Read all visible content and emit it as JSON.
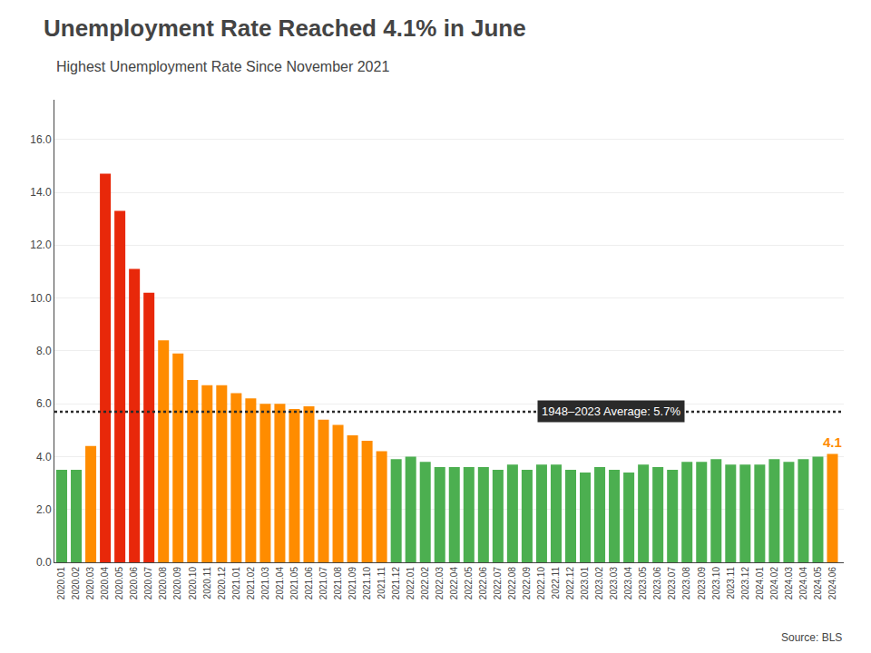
{
  "chart_data": {
    "type": "bar",
    "title": "Unemployment Rate Reached 4.1% in June",
    "subtitle": "Highest Unemployment Rate Since November 2021",
    "source": "Source: BLS",
    "categories": [
      "2020.01",
      "2020.02",
      "2020.03",
      "2020.04",
      "2020.05",
      "2020.06",
      "2020.07",
      "2020.08",
      "2020.09",
      "2020.10",
      "2020.11",
      "2020.12",
      "2021.01",
      "2021.02",
      "2021.03",
      "2021.04",
      "2021.05",
      "2021.06",
      "2021.07",
      "2021.08",
      "2021.09",
      "2021.10",
      "2021.11",
      "2021.12",
      "2022.01",
      "2022.02",
      "2022.03",
      "2022.04",
      "2022.05",
      "2022.06",
      "2022.07",
      "2022.08",
      "2022.09",
      "2022.10",
      "2022.11",
      "2022.12",
      "2023.01",
      "2023.02",
      "2023.03",
      "2023.04",
      "2023.05",
      "2023.06",
      "2023.07",
      "2023.08",
      "2023.09",
      "2023.10",
      "2023.11",
      "2023.12",
      "2024.01",
      "2024.02",
      "2024.03",
      "2024.04",
      "2024.05",
      "2024.06"
    ],
    "values": [
      3.5,
      3.5,
      4.4,
      14.7,
      13.3,
      11.1,
      10.2,
      8.4,
      7.9,
      6.9,
      6.7,
      6.7,
      6.4,
      6.2,
      6.0,
      6.0,
      5.8,
      5.9,
      5.4,
      5.2,
      4.8,
      4.6,
      4.2,
      3.9,
      4.0,
      3.8,
      3.6,
      3.6,
      3.6,
      3.6,
      3.5,
      3.7,
      3.5,
      3.7,
      3.7,
      3.5,
      3.4,
      3.6,
      3.5,
      3.4,
      3.7,
      3.6,
      3.5,
      3.8,
      3.8,
      3.9,
      3.7,
      3.7,
      3.7,
      3.9,
      3.8,
      3.9,
      4.0,
      4.1
    ],
    "colors": [
      "#4caf50",
      "#4caf50",
      "#ff8c00",
      "#e8280a",
      "#e8280a",
      "#e8280a",
      "#e8280a",
      "#ff8c00",
      "#ff8c00",
      "#ff8c00",
      "#ff8c00",
      "#ff8c00",
      "#ff8c00",
      "#ff8c00",
      "#ff8c00",
      "#ff8c00",
      "#ff8c00",
      "#ff8c00",
      "#ff8c00",
      "#ff8c00",
      "#ff8c00",
      "#ff8c00",
      "#ff8c00",
      "#4caf50",
      "#4caf50",
      "#4caf50",
      "#4caf50",
      "#4caf50",
      "#4caf50",
      "#4caf50",
      "#4caf50",
      "#4caf50",
      "#4caf50",
      "#4caf50",
      "#4caf50",
      "#4caf50",
      "#4caf50",
      "#4caf50",
      "#4caf50",
      "#4caf50",
      "#4caf50",
      "#4caf50",
      "#4caf50",
      "#4caf50",
      "#4caf50",
      "#4caf50",
      "#4caf50",
      "#4caf50",
      "#4caf50",
      "#4caf50",
      "#4caf50",
      "#4caf50",
      "#4caf50",
      "#ff8c00"
    ],
    "average_line": {
      "y": 5.7,
      "label": "1948–2023 Average: 5.7%",
      "color": "#2a2a2a"
    },
    "annotations": [
      {
        "text": "4.1",
        "category": "2024.06",
        "y": 4.1,
        "color": "#ff8c00"
      }
    ],
    "ylim": [
      0,
      17.5
    ],
    "yticks": [
      {
        "value": 0.0,
        "label": "0.0"
      },
      {
        "value": 2.0,
        "label": "2.0"
      },
      {
        "value": 4.0,
        "label": "4.0"
      },
      {
        "value": 6.0,
        "label": "6.0"
      },
      {
        "value": 8.0,
        "label": "8.0"
      },
      {
        "value": 10.0,
        "label": "10.0"
      },
      {
        "value": 12.0,
        "label": "12.0"
      },
      {
        "value": 14.0,
        "label": "14.0"
      },
      {
        "value": 16.0,
        "label": "16.0"
      }
    ],
    "grid": true
  }
}
